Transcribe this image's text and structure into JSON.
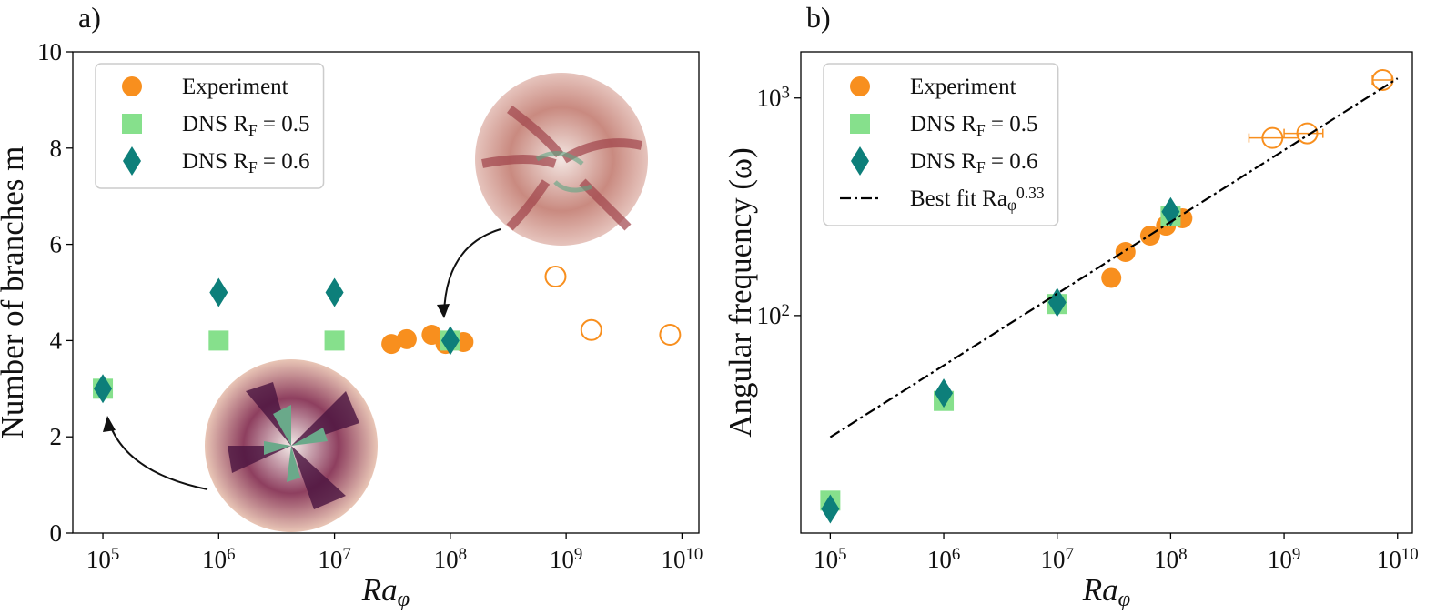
{
  "chart_data": [
    {
      "type": "scatter",
      "panel_label": "a)",
      "xlabel": "Ra_{φ}",
      "ylabel": "Number of branches m",
      "xscale": "log",
      "yscale": "linear",
      "legend": "upper left",
      "xlim": [
        55000,
        14000000000
      ],
      "ylim": [
        0,
        10
      ],
      "xticks": [
        {
          "value": 100000,
          "label": "10^{5}"
        },
        {
          "value": 1000000,
          "label": "10^{6}"
        },
        {
          "value": 10000000,
          "label": "10^{7}"
        },
        {
          "value": 100000000,
          "label": "10^{8}"
        },
        {
          "value": 1000000000,
          "label": "10^{9}"
        },
        {
          "value": 10000000000,
          "label": "10^{10}"
        }
      ],
      "yticks": [
        0,
        2,
        4,
        6,
        8,
        10
      ],
      "series": [
        {
          "name": "Experiment",
          "marker": "circle",
          "color": "#f88f1e",
          "x": [
            31000000,
            42000000,
            69000000,
            91000000,
            130000000
          ],
          "y": [
            3.93,
            4.03,
            4.12,
            3.93,
            3.97
          ]
        },
        {
          "marker": "circle",
          "color": "#f88f1e",
          "fill": "none",
          "x": [
            810000000,
            1650000000,
            7900000000
          ],
          "y": [
            5.33,
            4.22,
            4.12
          ]
        },
        {
          "name": "DNS R_{F} = 0.5",
          "marker": "square",
          "color": "#86e08c",
          "x": [
            100000,
            1000000,
            10000000,
            100000000
          ],
          "y": [
            3,
            4,
            4,
            4
          ]
        },
        {
          "name": "DNS R_{F} = 0.6",
          "marker": "diamond",
          "color": "#0d7f7a",
          "x": [
            100000,
            1000000,
            10000000,
            100000000
          ],
          "y": [
            3,
            5,
            5,
            4
          ]
        }
      ]
    },
    {
      "type": "scatter",
      "panel_label": "b)",
      "xlabel": "Ra_{φ}",
      "ylabel": "Angular frequency (ω)",
      "xscale": "log",
      "yscale": "log",
      "legend": "upper left",
      "xlim": [
        55000,
        13500000000
      ],
      "ylim": [
        10,
        1630
      ],
      "xticks": [
        {
          "value": 100000,
          "label": "10^{5}"
        },
        {
          "value": 1000000,
          "label": "10^{6}"
        },
        {
          "value": 10000000,
          "label": "10^{7}"
        },
        {
          "value": 100000000,
          "label": "10^{8}"
        },
        {
          "value": 1000000000,
          "label": "10^{9}"
        },
        {
          "value": 10000000000,
          "label": "10^{10}"
        }
      ],
      "yticks": [
        {
          "value": 100,
          "label": "10^{2}"
        },
        {
          "value": 1000,
          "label": "10^{3}"
        }
      ],
      "series": [
        {
          "name": "Experiment",
          "marker": "circle",
          "color": "#f88f1e",
          "x": [
            30000000,
            40000000,
            66000000,
            91000000,
            127000000
          ],
          "y": [
            149,
            196,
            233,
            259,
            280
          ]
        },
        {
          "marker": "circle",
          "color": "#f88f1e",
          "fill": "none",
          "x": [
            790000000,
            1600000000,
            7400000000
          ],
          "y": [
            655,
            688,
            1210
          ],
          "x_low": [
            490000000,
            1000000000,
            6000000000
          ],
          "x_high": [
            1350000000,
            2200000000,
            8900000000
          ]
        },
        {
          "name": "DNS R_{F} = 0.5",
          "marker": "square",
          "color": "#86e08c",
          "x": [
            100000,
            1000000,
            10000000,
            100000000
          ],
          "y": [
            14.1,
            40.5,
            113,
            288
          ]
        },
        {
          "name": "DNS R_{F} = 0.6",
          "marker": "diamond",
          "color": "#0d7f7a",
          "x": [
            100000,
            1000000,
            10000000,
            100000000
          ],
          "y": [
            12.9,
            44,
            115,
            300
          ]
        },
        {
          "name": "Best fit Ra_{φ}^{0.33}",
          "marker": "line",
          "style": "dashdot",
          "color": "#000000",
          "x": [
            100000,
            10000000000
          ],
          "y": [
            27.6,
            1230
          ]
        }
      ]
    }
  ]
}
